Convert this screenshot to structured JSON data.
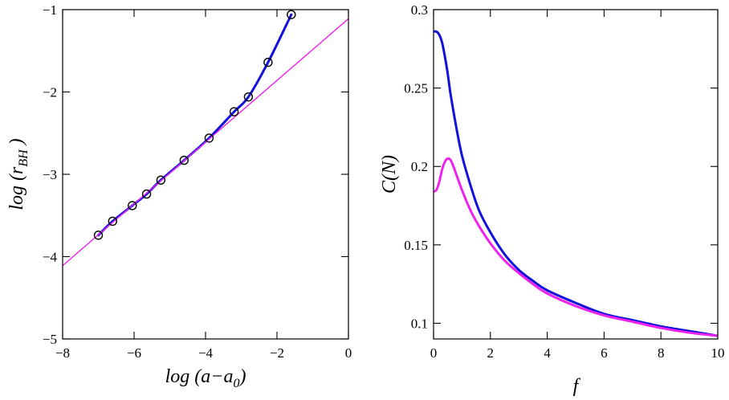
{
  "chart_data": [
    {
      "type": "line",
      "title": "",
      "xlabel": "log (a−a0)",
      "ylabel": "log (rBH)",
      "xlim": [
        -8,
        0
      ],
      "ylim": [
        -5,
        -1
      ],
      "xticks": [
        -8,
        -6,
        -4,
        -2,
        0
      ],
      "yticks": [
        -5,
        -4,
        -3,
        -2,
        -1
      ],
      "xtick_labels": [
        "−8",
        "−6",
        "−4",
        "−2",
        "0"
      ],
      "ytick_labels": [
        "−5",
        "−4",
        "−3",
        "−2",
        "−1"
      ],
      "grid": false,
      "legend": null,
      "series": [
        {
          "name": "data points",
          "kind": "scatter-open-circle",
          "color": "#000000",
          "x": [
            -7.0,
            -6.6,
            -6.05,
            -5.65,
            -5.25,
            -4.6,
            -3.9,
            -3.2,
            -2.8,
            -2.25,
            -1.6
          ],
          "y": [
            -3.74,
            -3.57,
            -3.38,
            -3.24,
            -3.07,
            -2.83,
            -2.56,
            -2.24,
            -2.06,
            -1.64,
            -1.06
          ]
        },
        {
          "name": "fit curve",
          "kind": "line",
          "color": "#1111dd",
          "x": [
            -7.0,
            -6.6,
            -6.05,
            -5.65,
            -5.25,
            -4.6,
            -3.9,
            -3.2,
            -2.8,
            -2.25,
            -1.6
          ],
          "y": [
            -3.74,
            -3.57,
            -3.38,
            -3.24,
            -3.07,
            -2.83,
            -2.56,
            -2.24,
            -2.06,
            -1.64,
            -1.06
          ]
        },
        {
          "name": "linear asymptote",
          "kind": "line",
          "color": "#ee22ee",
          "x": [
            -8,
            0
          ],
          "y": [
            -4.11,
            -1.11
          ]
        }
      ]
    },
    {
      "type": "line",
      "title": "",
      "xlabel": "f",
      "ylabel": "C(N)",
      "xlim": [
        0,
        10
      ],
      "ylim": [
        0.09,
        0.3
      ],
      "xticks": [
        0,
        2,
        4,
        6,
        8,
        10
      ],
      "yticks": [
        0.1,
        0.15,
        0.2,
        0.25,
        0.3
      ],
      "xtick_labels": [
        "0",
        "2",
        "4",
        "6",
        "8",
        "10"
      ],
      "ytick_labels": [
        "0.1",
        "0.15",
        "0.2",
        "0.25",
        "0.3"
      ],
      "grid": false,
      "legend": null,
      "series": [
        {
          "name": "blue curve",
          "color": "#1111dd",
          "x": [
            0,
            0.1,
            0.2,
            0.3,
            0.4,
            0.5,
            0.6,
            0.8,
            1.0,
            1.3,
            1.6,
            2.0,
            2.5,
            3.0,
            3.5,
            4.0,
            5.0,
            6.0,
            7.0,
            8.0,
            9.0,
            10.0
          ],
          "y": [
            0.286,
            0.286,
            0.284,
            0.279,
            0.27,
            0.259,
            0.246,
            0.225,
            0.207,
            0.188,
            0.172,
            0.158,
            0.144,
            0.134,
            0.127,
            0.121,
            0.113,
            0.106,
            0.102,
            0.098,
            0.095,
            0.092
          ]
        },
        {
          "name": "magenta curve",
          "color": "#ee22ee",
          "x": [
            0,
            0.1,
            0.2,
            0.3,
            0.4,
            0.5,
            0.6,
            0.7,
            0.8,
            1.0,
            1.3,
            1.6,
            2.0,
            2.5,
            3.0,
            3.5,
            4.0,
            5.0,
            6.0,
            7.0,
            8.0,
            9.0,
            10.0
          ],
          "y": [
            0.184,
            0.185,
            0.19,
            0.198,
            0.203,
            0.205,
            0.204,
            0.2,
            0.195,
            0.185,
            0.172,
            0.162,
            0.151,
            0.14,
            0.132,
            0.125,
            0.119,
            0.111,
            0.105,
            0.101,
            0.097,
            0.094,
            0.092
          ]
        }
      ]
    }
  ]
}
